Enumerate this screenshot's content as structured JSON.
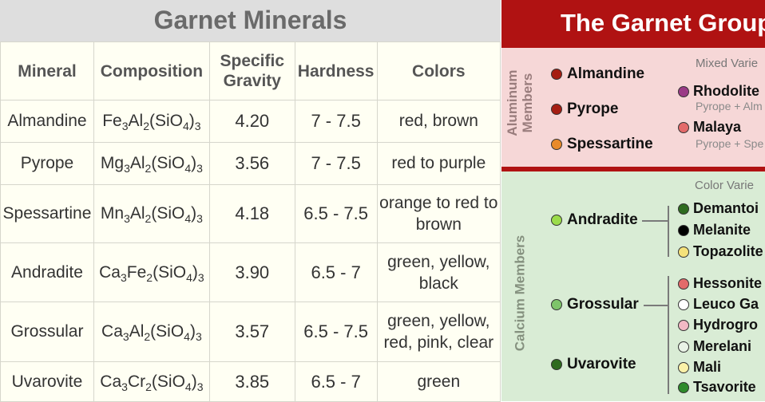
{
  "left": {
    "title": "Garnet Minerals",
    "headers": {
      "mineral": "Mineral",
      "composition": "Composition",
      "sg_line1": "Specific",
      "sg_line2": "Gravity",
      "hardness": "Hardness",
      "colors": "Colors"
    },
    "rows": [
      {
        "mineral": "Almandine",
        "f1": "Fe",
        "n1": "3",
        "f2": "Al",
        "n2": "2",
        "f3": "(SiO",
        "n3": "4",
        "f4": ")",
        "n4": "3",
        "sg": "4.20",
        "hardness": "7 - 7.5",
        "colors1": "red, brown",
        "colors2": ""
      },
      {
        "mineral": "Pyrope",
        "f1": "Mg",
        "n1": "3",
        "f2": "Al",
        "n2": "2",
        "f3": "(SiO",
        "n3": "4",
        "f4": ")",
        "n4": "3",
        "sg": "3.56",
        "hardness": "7 - 7.5",
        "colors1": "red to purple",
        "colors2": ""
      },
      {
        "mineral": "Spessartine",
        "f1": "Mn",
        "n1": "3",
        "f2": "Al",
        "n2": "2",
        "f3": "(SiO",
        "n3": "4",
        "f4": ")",
        "n4": "3",
        "sg": "4.18",
        "hardness": "6.5 - 7.5",
        "colors1": "orange to red to",
        "colors2": "brown"
      },
      {
        "mineral": "Andradite",
        "f1": "Ca",
        "n1": "3",
        "f2": "Fe",
        "n2": "2",
        "f3": "(SiO",
        "n3": "4",
        "f4": ")",
        "n4": "3",
        "sg": "3.90",
        "hardness": "6.5 - 7",
        "colors1": "green, yellow,",
        "colors2": "black"
      },
      {
        "mineral": "Grossular",
        "f1": "Ca",
        "n1": "3",
        "f2": "Al",
        "n2": "2",
        "f3": "(SiO",
        "n3": "4",
        "f4": ")",
        "n4": "3",
        "sg": "3.57",
        "hardness": "6.5 - 7.5",
        "colors1": "green, yellow,",
        "colors2": "red, pink, clear"
      },
      {
        "mineral": "Uvarovite",
        "f1": "Ca",
        "n1": "3",
        "f2": "Cr",
        "n2": "2",
        "f3": "(SiO",
        "n3": "4",
        "f4": ")",
        "n4": "3",
        "sg": "3.85",
        "hardness": "6.5 - 7",
        "colors1": "green",
        "colors2": ""
      }
    ]
  },
  "right": {
    "title": "The Garnet Group",
    "aluminum_label_line1": "Aluminum",
    "aluminum_label_line2": "Members",
    "calcium_label": "Calcium Members",
    "mixed_caption": "Mixed Varie",
    "color_caption": "Color Varie",
    "aluminum_members": [
      {
        "name": "Almandine",
        "color": "#a51d12"
      },
      {
        "name": "Pyrope",
        "color": "#a51d12"
      },
      {
        "name": "Spessartine",
        "color": "#e88a2a"
      }
    ],
    "mixed_varieties": [
      {
        "name": "Rhodolite",
        "sub": "Pyrope + Alm",
        "color": "#9a3b86"
      },
      {
        "name": "Malaya",
        "sub": "Pyrope + Spe",
        "color": "#e36a6a"
      }
    ],
    "calcium_members": [
      {
        "name": "Andradite",
        "color": "#9bdc4a"
      },
      {
        "name": "Grossular",
        "color": "#7ec46a"
      },
      {
        "name": "Uvarovite",
        "color": "#2e6b1f"
      }
    ],
    "andradite_varieties": [
      {
        "name": "Demantoi",
        "color": "#2e6b1f"
      },
      {
        "name": "Melanite",
        "color": "#000000"
      },
      {
        "name": "Topazolite",
        "color": "#f5e27a"
      }
    ],
    "grossular_varieties": [
      {
        "name": "Hessonite",
        "color": "#e36a6a"
      },
      {
        "name": "Leuco Ga",
        "color": "#ffffff"
      },
      {
        "name": "Hydrogro",
        "color": "#f2b9c4"
      },
      {
        "name": "Merelani",
        "color": "#e9f3e6"
      },
      {
        "name": "Mali",
        "color": "#fbf1a8"
      },
      {
        "name": "Tsavorite",
        "color": "#2e8a2a"
      }
    ]
  }
}
